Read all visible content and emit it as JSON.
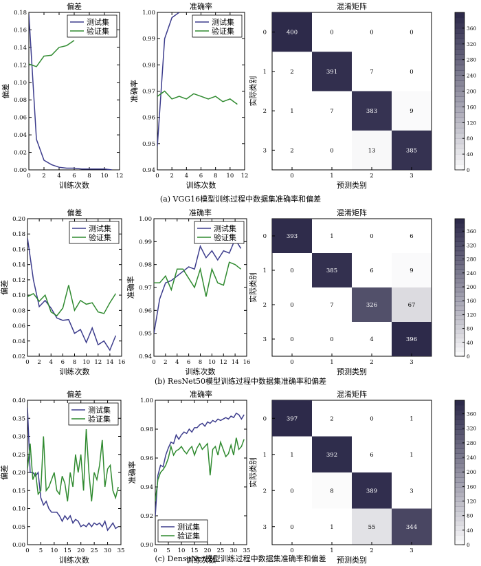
{
  "colors": {
    "test": "#3c3c8c",
    "val": "#2f8a2f",
    "cm_dark": "#2d2a4a",
    "cm_light": "#ffffff"
  },
  "chart_data": [
    {
      "panel": "a",
      "type": "line",
      "title": "偏差",
      "xlabel": "训练次数",
      "ylabel": "偏差",
      "xlim": [
        0,
        12
      ],
      "ylim": [
        0,
        0.18
      ],
      "xticks": [
        "0",
        "2",
        "4",
        "6",
        "8",
        "10",
        "12"
      ],
      "yticks": [
        "0.00",
        "0.02",
        "0.04",
        "0.06",
        "0.08",
        "0.10",
        "0.12",
        "0.14",
        "0.16",
        "0.18"
      ],
      "legend_position": "top-right",
      "series": [
        {
          "name": "测试集",
          "color_key": "test",
          "x": [
            0,
            1,
            2,
            3,
            4,
            5,
            6,
            7,
            8,
            9,
            10,
            11
          ],
          "y": [
            0.178,
            0.035,
            0.011,
            0.006,
            0.003,
            0.002,
            0.002,
            0.001,
            0.001,
            0.001,
            0.001,
            0.0
          ]
        },
        {
          "name": "验证集",
          "color_key": "val",
          "x": [
            0,
            1,
            2,
            3,
            4,
            5,
            6
          ],
          "y": [
            0.121,
            0.118,
            0.13,
            0.131,
            0.14,
            0.142,
            0.148
          ]
        }
      ]
    },
    {
      "panel": "a",
      "type": "line",
      "title": "准确率",
      "xlabel": "训练次数",
      "ylabel": "准确率",
      "xlim": [
        0,
        12
      ],
      "ylim": [
        0.94,
        1.0
      ],
      "xticks": [
        "0",
        "2",
        "4",
        "6",
        "8",
        "10",
        "12"
      ],
      "yticks": [
        "0.94",
        "0.95",
        "0.96",
        "0.97",
        "0.98",
        "0.99",
        "1.00"
      ],
      "legend_position": "top-right",
      "series": [
        {
          "name": "测试集",
          "color_key": "test",
          "x": [
            0,
            1,
            2,
            3
          ],
          "y": [
            0.949,
            0.99,
            0.998,
            1.0
          ]
        },
        {
          "name": "验证集",
          "color_key": "val",
          "x": [
            0,
            1,
            2,
            3,
            4,
            5,
            6,
            7,
            8,
            9,
            10,
            11
          ],
          "y": [
            0.968,
            0.97,
            0.967,
            0.968,
            0.967,
            0.969,
            0.968,
            0.967,
            0.968,
            0.966,
            0.967,
            0.965
          ]
        }
      ]
    },
    {
      "panel": "a",
      "type": "heatmap",
      "title": "混淆矩阵",
      "xlabel": "预测类别",
      "ylabel": "实际类别",
      "categories": [
        "0",
        "1",
        "2",
        "3"
      ],
      "matrix": [
        [
          400,
          0,
          0,
          0
        ],
        [
          2,
          391,
          7,
          0
        ],
        [
          1,
          7,
          383,
          9
        ],
        [
          2,
          0,
          13,
          385
        ]
      ],
      "vmax": 400,
      "colorbar_ticks": [
        "0",
        "40",
        "80",
        "120",
        "160",
        "200",
        "240",
        "280",
        "320",
        "360"
      ]
    },
    {
      "panel": "b",
      "type": "line",
      "title": "偏差",
      "xlabel": "训练次数",
      "ylabel": "偏差",
      "xlim": [
        0,
        16
      ],
      "ylim": [
        0.02,
        0.2
      ],
      "xticks": [
        "0",
        "2",
        "4",
        "6",
        "8",
        "10",
        "12",
        "14",
        "16"
      ],
      "yticks": [
        "0.02",
        "0.04",
        "0.06",
        "0.08",
        "0.10",
        "0.12",
        "0.14",
        "0.16",
        "0.18",
        "0.20"
      ],
      "legend_position": "top-right",
      "series": [
        {
          "name": "测试集",
          "color_key": "test",
          "x": [
            0,
            1,
            2,
            3,
            4,
            5,
            6,
            7,
            8,
            9,
            10,
            11,
            12,
            13,
            14,
            15
          ],
          "y": [
            0.175,
            0.12,
            0.085,
            0.093,
            0.083,
            0.07,
            0.067,
            0.068,
            0.05,
            0.055,
            0.038,
            0.057,
            0.035,
            0.04,
            0.028,
            0.047
          ]
        },
        {
          "name": "验证集",
          "color_key": "val",
          "x": [
            0,
            1,
            2,
            3,
            4,
            5,
            6,
            7,
            8,
            9,
            10,
            11,
            12,
            13,
            14,
            15
          ],
          "y": [
            0.098,
            0.102,
            0.092,
            0.1,
            0.078,
            0.073,
            0.083,
            0.113,
            0.08,
            0.093,
            0.088,
            0.09,
            0.078,
            0.076,
            0.09,
            0.102
          ]
        }
      ]
    },
    {
      "panel": "b",
      "type": "line",
      "title": "准确率",
      "xlabel": "训练次数",
      "ylabel": "准确率",
      "xlim": [
        0,
        16
      ],
      "ylim": [
        0.94,
        1.0
      ],
      "xticks": [
        "0",
        "2",
        "4",
        "6",
        "8",
        "10",
        "12",
        "14",
        "16"
      ],
      "yticks": [
        "0.94",
        "0.95",
        "0.96",
        "0.97",
        "0.98",
        "0.99",
        "1.00"
      ],
      "legend_position": "top-right",
      "series": [
        {
          "name": "测试集",
          "color_key": "test",
          "x": [
            0,
            1,
            2,
            3,
            4,
            5,
            6,
            7,
            8,
            9,
            10,
            11,
            12,
            13,
            14,
            15
          ],
          "y": [
            0.95,
            0.965,
            0.972,
            0.973,
            0.975,
            0.977,
            0.979,
            0.978,
            0.988,
            0.983,
            0.986,
            0.982,
            0.986,
            0.985,
            0.991,
            0.987
          ]
        },
        {
          "name": "验证集",
          "color_key": "val",
          "x": [
            0,
            1,
            2,
            3,
            4,
            5,
            6,
            7,
            8,
            9,
            10,
            11,
            12,
            13,
            14,
            15
          ],
          "y": [
            0.972,
            0.972,
            0.975,
            0.969,
            0.978,
            0.978,
            0.974,
            0.97,
            0.978,
            0.966,
            0.978,
            0.972,
            0.971,
            0.981,
            0.98,
            0.978
          ]
        }
      ]
    },
    {
      "panel": "b",
      "type": "heatmap",
      "title": "混淆矩阵",
      "xlabel": "预测类别",
      "ylabel": "实际类别",
      "categories": [
        "0",
        "1",
        "2",
        "3"
      ],
      "matrix": [
        [
          393,
          1,
          0,
          6
        ],
        [
          0,
          385,
          6,
          9
        ],
        [
          0,
          7,
          326,
          67
        ],
        [
          0,
          0,
          4,
          396
        ]
      ],
      "vmax": 396,
      "colorbar_ticks": [
        "0",
        "40",
        "80",
        "120",
        "160",
        "200",
        "240",
        "280",
        "320",
        "360"
      ]
    },
    {
      "panel": "c",
      "type": "line",
      "title": "偏差",
      "xlabel": "训练次数",
      "ylabel": "偏差",
      "xlim": [
        0,
        35
      ],
      "ylim": [
        0,
        0.4
      ],
      "xticks": [
        "0",
        "5",
        "10",
        "15",
        "20",
        "25",
        "30",
        "35"
      ],
      "yticks": [
        "0.00",
        "0.05",
        "0.10",
        "0.15",
        "0.20",
        "0.25",
        "0.30",
        "0.35",
        "0.40"
      ],
      "legend_position": "top-right",
      "series": [
        {
          "name": "测试集",
          "color_key": "test",
          "x": [
            0,
            1,
            2,
            3,
            4,
            5,
            6,
            7,
            8,
            9,
            10,
            11,
            12,
            13,
            14,
            15,
            16,
            17,
            18,
            19,
            20,
            21,
            22,
            23,
            24,
            25,
            26,
            27,
            28,
            29,
            30,
            31,
            32,
            33,
            34
          ],
          "y": [
            0.38,
            0.2,
            0.2,
            0.19,
            0.2,
            0.13,
            0.11,
            0.12,
            0.1,
            0.09,
            0.09,
            0.09,
            0.08,
            0.065,
            0.08,
            0.07,
            0.08,
            0.06,
            0.07,
            0.065,
            0.05,
            0.055,
            0.05,
            0.06,
            0.05,
            0.06,
            0.055,
            0.06,
            0.05,
            0.065,
            0.04,
            0.05,
            0.06,
            0.045,
            0.05
          ]
        },
        {
          "name": "验证集",
          "color_key": "val",
          "x": [
            0,
            1,
            2,
            3,
            4,
            5,
            6,
            7,
            8,
            9,
            10,
            11,
            12,
            13,
            14,
            15,
            16,
            17,
            18,
            19,
            20,
            21,
            22,
            23,
            24,
            25,
            26,
            27,
            28,
            29,
            30,
            31,
            32,
            33,
            34
          ],
          "y": [
            0.21,
            0.28,
            0.18,
            0.2,
            0.14,
            0.15,
            0.3,
            0.15,
            0.16,
            0.18,
            0.2,
            0.15,
            0.14,
            0.19,
            0.17,
            0.12,
            0.2,
            0.16,
            0.25,
            0.2,
            0.25,
            0.15,
            0.32,
            0.2,
            0.12,
            0.2,
            0.18,
            0.22,
            0.29,
            0.16,
            0.21,
            0.22,
            0.15,
            0.13,
            0.16
          ]
        }
      ]
    },
    {
      "panel": "c",
      "type": "line",
      "title": "准确率",
      "xlabel": "训练次数",
      "ylabel": "准确率",
      "xlim": [
        0,
        35
      ],
      "ylim": [
        0.9,
        1.0
      ],
      "xticks": [
        "0",
        "5",
        "10",
        "15",
        "20",
        "25",
        "30",
        "35"
      ],
      "yticks": [
        "0.90",
        "0.92",
        "0.94",
        "0.96",
        "0.98",
        "1.00"
      ],
      "legend_position": "bottom-left",
      "series": [
        {
          "name": "测试集",
          "color_key": "test",
          "x": [
            0,
            1,
            2,
            3,
            4,
            5,
            6,
            7,
            8,
            9,
            10,
            11,
            12,
            13,
            14,
            15,
            16,
            17,
            18,
            19,
            20,
            21,
            22,
            23,
            24,
            25,
            26,
            27,
            28,
            29,
            30,
            31,
            32,
            33,
            34
          ],
          "y": [
            0.92,
            0.948,
            0.955,
            0.954,
            0.962,
            0.967,
            0.971,
            0.97,
            0.976,
            0.973,
            0.976,
            0.978,
            0.977,
            0.98,
            0.978,
            0.981,
            0.981,
            0.983,
            0.984,
            0.982,
            0.985,
            0.984,
            0.986,
            0.985,
            0.987,
            0.986,
            0.987,
            0.988,
            0.987,
            0.989,
            0.988,
            0.991,
            0.99,
            0.987,
            0.99
          ]
        },
        {
          "name": "验证集",
          "color_key": "val",
          "x": [
            0,
            1,
            2,
            3,
            4,
            5,
            6,
            7,
            8,
            9,
            10,
            11,
            12,
            13,
            14,
            15,
            16,
            17,
            18,
            19,
            20,
            21,
            22,
            23,
            24,
            25,
            26,
            27,
            28,
            29,
            30,
            31,
            32,
            33,
            34
          ],
          "y": [
            0.93,
            0.945,
            0.95,
            0.952,
            0.955,
            0.96,
            0.968,
            0.962,
            0.965,
            0.966,
            0.968,
            0.965,
            0.963,
            0.966,
            0.968,
            0.962,
            0.967,
            0.97,
            0.966,
            0.968,
            0.97,
            0.948,
            0.966,
            0.968,
            0.962,
            0.971,
            0.966,
            0.961,
            0.963,
            0.969,
            0.962,
            0.974,
            0.966,
            0.968,
            0.973
          ]
        }
      ]
    },
    {
      "panel": "c",
      "type": "heatmap",
      "title": "混淆矩阵",
      "xlabel": "预测类别",
      "ylabel": "实际类别",
      "categories": [
        "0",
        "1",
        "2",
        "3"
      ],
      "matrix": [
        [
          397,
          2,
          0,
          1
        ],
        [
          1,
          392,
          6,
          1
        ],
        [
          0,
          8,
          389,
          3
        ],
        [
          0,
          1,
          55,
          344
        ]
      ],
      "vmax": 397,
      "colorbar_ticks": [
        "0",
        "40",
        "80",
        "120",
        "160",
        "200",
        "240",
        "280",
        "320",
        "360"
      ]
    }
  ],
  "captions": [
    "(a) VGG16模型训练过程中数据集准确率和偏差",
    "(b) ResNet50模型训练过程中数据集准确率和偏差",
    "(c) DenseNet模型训练过程中数据集准确率和偏差"
  ]
}
